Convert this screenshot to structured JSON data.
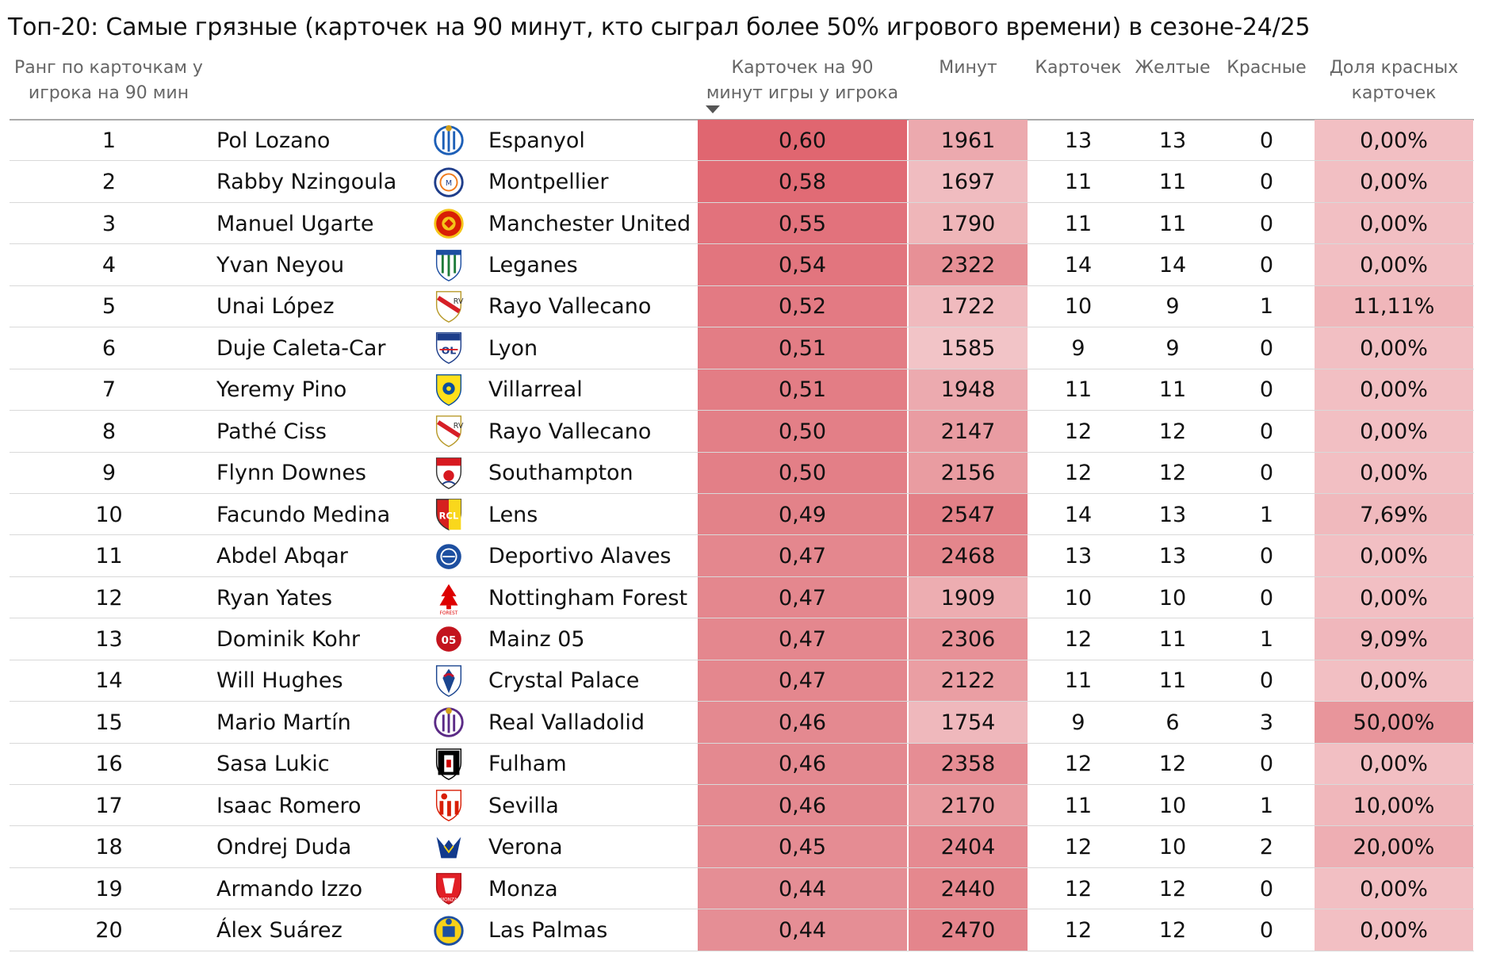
{
  "title": "Топ-20: Самые грязные (карточек на 90 минут, кто сыграл более 50% игрового времени) в сезоне-24/25",
  "headers": {
    "rank": [
      "Ранг по карточкам у",
      "игрока на 90 мин"
    ],
    "rate": [
      "Карточек на 90",
      "минут игры у игрока"
    ],
    "minutes": "Минут",
    "cards": "Карточек",
    "yellow": "Желтые",
    "red": "Красные",
    "red_share": [
      "Доля красных",
      "карточек"
    ]
  },
  "sort": {
    "column": "rate",
    "direction": "descending"
  },
  "colors": {
    "rate_high": "#e06670",
    "rate_low": "#e58e95",
    "minutes_high": "#e38087",
    "minutes_low": "#f2c4c7",
    "share_low": "#f2bfc3",
    "share_high": "#e8959b"
  },
  "rows": [
    {
      "rank": "1",
      "player": "Pol Lozano",
      "team": "Espanyol",
      "logo": "espanyol-crest",
      "rate": "0,60",
      "minutes": "1961",
      "cards": "13",
      "yellow": "13",
      "red": "0",
      "red_share": "0,00%"
    },
    {
      "rank": "2",
      "player": "Rabby Nzingoula",
      "team": "Montpellier",
      "logo": "montpellier-crest",
      "rate": "0,58",
      "minutes": "1697",
      "cards": "11",
      "yellow": "11",
      "red": "0",
      "red_share": "0,00%"
    },
    {
      "rank": "3",
      "player": "Manuel Ugarte",
      "team": "Manchester United",
      "logo": "manchester-united-crest",
      "rate": "0,55",
      "minutes": "1790",
      "cards": "11",
      "yellow": "11",
      "red": "0",
      "red_share": "0,00%"
    },
    {
      "rank": "4",
      "player": "Yvan Neyou",
      "team": "Leganes",
      "logo": "leganes-crest",
      "rate": "0,54",
      "minutes": "2322",
      "cards": "14",
      "yellow": "14",
      "red": "0",
      "red_share": "0,00%"
    },
    {
      "rank": "5",
      "player": "Unai López",
      "team": "Rayo Vallecano",
      "logo": "rayo-vallecano-crest",
      "rate": "0,52",
      "minutes": "1722",
      "cards": "10",
      "yellow": "9",
      "red": "1",
      "red_share": "11,11%"
    },
    {
      "rank": "6",
      "player": "Duje Caleta-Car",
      "team": "Lyon",
      "logo": "lyon-crest",
      "rate": "0,51",
      "minutes": "1585",
      "cards": "9",
      "yellow": "9",
      "red": "0",
      "red_share": "0,00%"
    },
    {
      "rank": "7",
      "player": "Yeremy Pino",
      "team": "Villarreal",
      "logo": "villarreal-crest",
      "rate": "0,51",
      "minutes": "1948",
      "cards": "11",
      "yellow": "11",
      "red": "0",
      "red_share": "0,00%"
    },
    {
      "rank": "8",
      "player": "Pathé Ciss",
      "team": "Rayo Vallecano",
      "logo": "rayo-vallecano-crest",
      "rate": "0,50",
      "minutes": "2147",
      "cards": "12",
      "yellow": "12",
      "red": "0",
      "red_share": "0,00%"
    },
    {
      "rank": "9",
      "player": "Flynn Downes",
      "team": "Southampton",
      "logo": "southampton-crest",
      "rate": "0,50",
      "minutes": "2156",
      "cards": "12",
      "yellow": "12",
      "red": "0",
      "red_share": "0,00%"
    },
    {
      "rank": "10",
      "player": "Facundo Medina",
      "team": "Lens",
      "logo": "lens-crest",
      "rate": "0,49",
      "minutes": "2547",
      "cards": "14",
      "yellow": "13",
      "red": "1",
      "red_share": "7,69%"
    },
    {
      "rank": "11",
      "player": "Abdel Abqar",
      "team": "Deportivo Alaves",
      "logo": "alaves-crest",
      "rate": "0,47",
      "minutes": "2468",
      "cards": "13",
      "yellow": "13",
      "red": "0",
      "red_share": "0,00%"
    },
    {
      "rank": "12",
      "player": "Ryan Yates",
      "team": "Nottingham Forest",
      "logo": "nottingham-forest-crest",
      "rate": "0,47",
      "minutes": "1909",
      "cards": "10",
      "yellow": "10",
      "red": "0",
      "red_share": "0,00%"
    },
    {
      "rank": "13",
      "player": "Dominik Kohr",
      "team": "Mainz 05",
      "logo": "mainz-crest",
      "rate": "0,47",
      "minutes": "2306",
      "cards": "12",
      "yellow": "11",
      "red": "1",
      "red_share": "9,09%"
    },
    {
      "rank": "14",
      "player": "Will Hughes",
      "team": "Crystal Palace",
      "logo": "crystal-palace-crest",
      "rate": "0,47",
      "minutes": "2122",
      "cards": "11",
      "yellow": "11",
      "red": "0",
      "red_share": "0,00%"
    },
    {
      "rank": "15",
      "player": "Mario Martín",
      "team": "Real Valladolid",
      "logo": "valladolid-crest",
      "rate": "0,46",
      "minutes": "1754",
      "cards": "9",
      "yellow": "6",
      "red": "3",
      "red_share": "50,00%"
    },
    {
      "rank": "16",
      "player": "Sasa Lukic",
      "team": "Fulham",
      "logo": "fulham-crest",
      "rate": "0,46",
      "minutes": "2358",
      "cards": "12",
      "yellow": "12",
      "red": "0",
      "red_share": "0,00%"
    },
    {
      "rank": "17",
      "player": "Isaac Romero",
      "team": "Sevilla",
      "logo": "sevilla-crest",
      "rate": "0,46",
      "minutes": "2170",
      "cards": "11",
      "yellow": "10",
      "red": "1",
      "red_share": "10,00%"
    },
    {
      "rank": "18",
      "player": "Ondrej Duda",
      "team": "Verona",
      "logo": "verona-crest",
      "rate": "0,45",
      "minutes": "2404",
      "cards": "12",
      "yellow": "10",
      "red": "2",
      "red_share": "20,00%"
    },
    {
      "rank": "19",
      "player": "Armando Izzo",
      "team": "Monza",
      "logo": "monza-crest",
      "rate": "0,44",
      "minutes": "2440",
      "cards": "12",
      "yellow": "12",
      "red": "0",
      "red_share": "0,00%"
    },
    {
      "rank": "20",
      "player": "Álex Suárez",
      "team": "Las Palmas",
      "logo": "las-palmas-crest",
      "rate": "0,44",
      "minutes": "2470",
      "cards": "12",
      "yellow": "12",
      "red": "0",
      "red_share": "0,00%"
    }
  ]
}
